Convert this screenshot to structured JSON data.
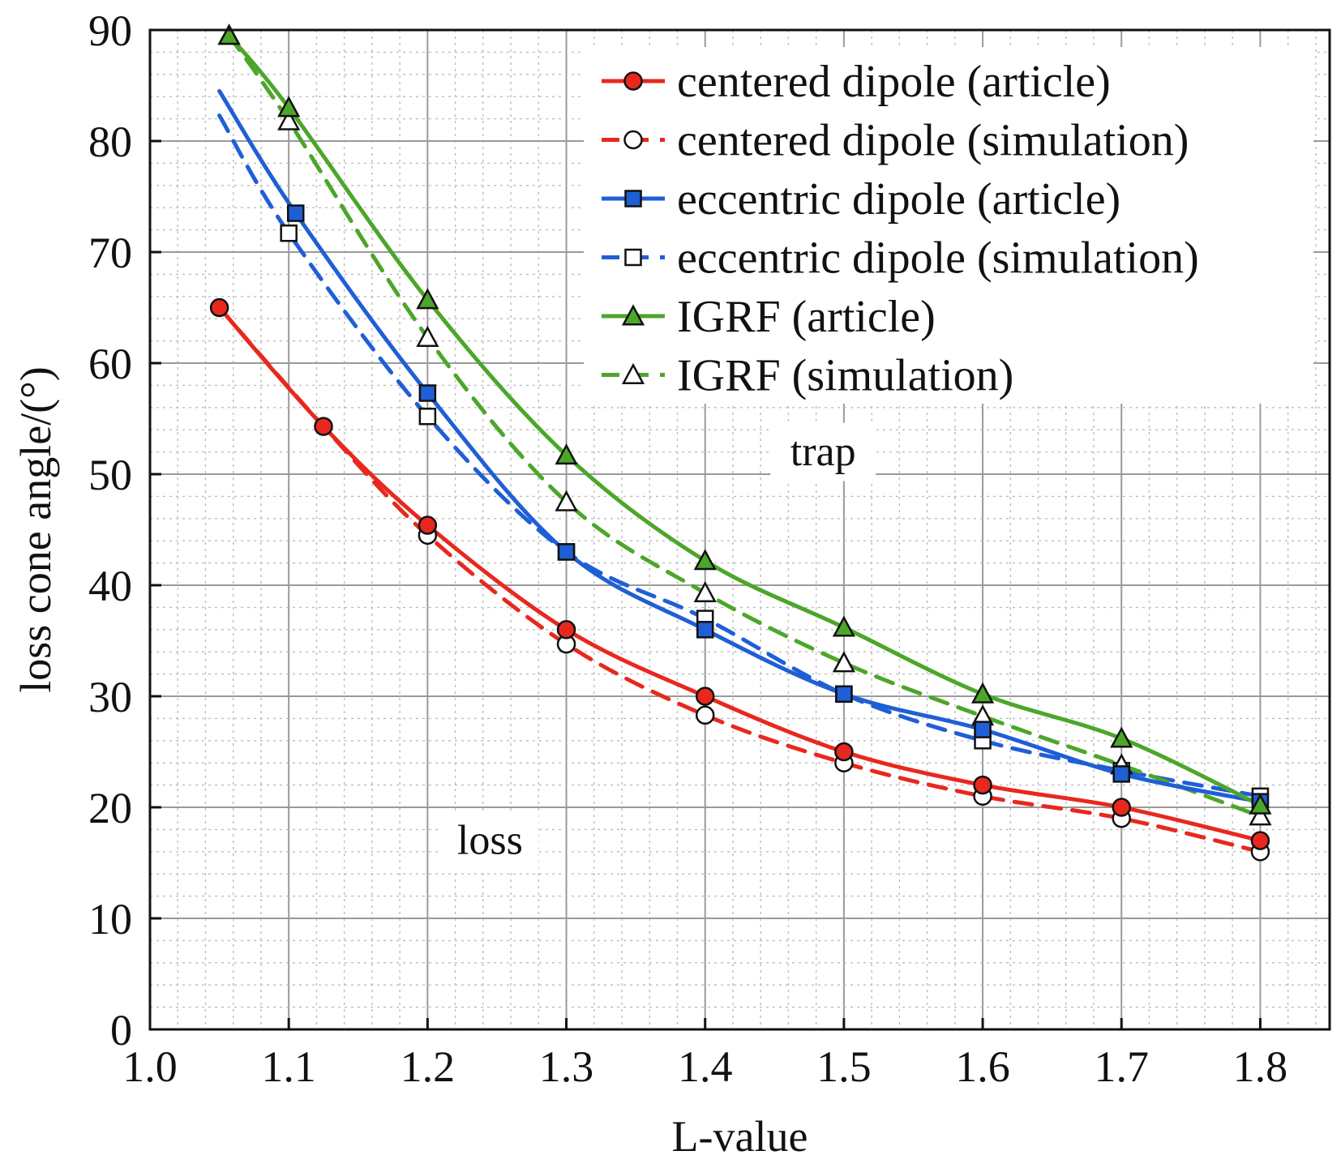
{
  "chart_data": {
    "type": "line",
    "title": "",
    "xlabel": "L-value",
    "ylabel": "loss cone angle/(°)",
    "xlim": [
      1.0,
      1.85
    ],
    "ylim": [
      0,
      90
    ],
    "x_ticks": [
      1.0,
      1.1,
      1.2,
      1.3,
      1.4,
      1.5,
      1.6,
      1.7,
      1.8
    ],
    "x_tick_labels": [
      "1.0",
      "1.1",
      "1.2",
      "1.3",
      "1.4",
      "1.5",
      "1.6",
      "1.7",
      "1.8"
    ],
    "y_ticks": [
      0,
      10,
      20,
      30,
      40,
      50,
      60,
      70,
      80,
      90
    ],
    "y_tick_labels": [
      "0",
      "10",
      "20",
      "30",
      "40",
      "50",
      "60",
      "70",
      "80",
      "90"
    ],
    "grid": true,
    "legend_position": "top-right",
    "annotations": [
      {
        "text": "trap",
        "x": 1.485,
        "y": 52
      },
      {
        "text": "loss",
        "x": 1.245,
        "y": 17
      }
    ],
    "series": [
      {
        "name": "centered dipole (article)",
        "color": "#e8281e",
        "dashed": false,
        "marker": "circle",
        "filled": true,
        "x": [
          1.05,
          1.125,
          1.2,
          1.3,
          1.4,
          1.5,
          1.6,
          1.7,
          1.8
        ],
        "y": [
          65.0,
          54.3,
          45.4,
          36.0,
          30.0,
          25.0,
          22.0,
          20.0,
          17.0
        ]
      },
      {
        "name": "centered dipole (simulation)",
        "color": "#e8281e",
        "dashed": true,
        "marker": "circle",
        "filled": false,
        "x": [
          1.2,
          1.3,
          1.4,
          1.5,
          1.6,
          1.7,
          1.8
        ],
        "y": [
          44.5,
          34.7,
          28.3,
          24.0,
          21.0,
          19.0,
          16.0
        ]
      },
      {
        "name": "eccentric dipole (article)",
        "color": "#1f5fd6",
        "dashed": false,
        "marker": "square",
        "filled": true,
        "x": [
          1.105,
          1.2,
          1.3,
          1.4,
          1.5,
          1.6,
          1.7,
          1.8
        ],
        "y": [
          73.5,
          57.3,
          43.0,
          36.0,
          30.2,
          27.0,
          23.0,
          20.5
        ]
      },
      {
        "name": "eccentric dipole (simulation)",
        "color": "#1f5fd6",
        "dashed": true,
        "marker": "square",
        "filled": false,
        "x": [
          1.1,
          1.2,
          1.3,
          1.4,
          1.5,
          1.6,
          1.7,
          1.8
        ],
        "y": [
          71.7,
          55.2,
          43.0,
          37.0,
          30.2,
          26.0,
          23.3,
          21.0
        ]
      },
      {
        "name": "IGRF (article)",
        "color": "#4ca62a",
        "dashed": false,
        "marker": "triangle",
        "filled": true,
        "x": [
          1.057,
          1.1,
          1.2,
          1.3,
          1.4,
          1.5,
          1.6,
          1.7,
          1.8
        ],
        "y": [
          89.5,
          83.0,
          65.7,
          51.7,
          42.2,
          36.2,
          30.2,
          26.2,
          20.2
        ]
      },
      {
        "name": "IGRF (simulation)",
        "color": "#4ca62a",
        "dashed": true,
        "marker": "triangle",
        "filled": false,
        "x": [
          1.057,
          1.1,
          1.2,
          1.3,
          1.4,
          1.5,
          1.6,
          1.7,
          1.8
        ],
        "y": [
          89.5,
          81.8,
          62.3,
          47.5,
          39.3,
          33.0,
          28.2,
          23.8,
          19.2
        ]
      }
    ]
  }
}
